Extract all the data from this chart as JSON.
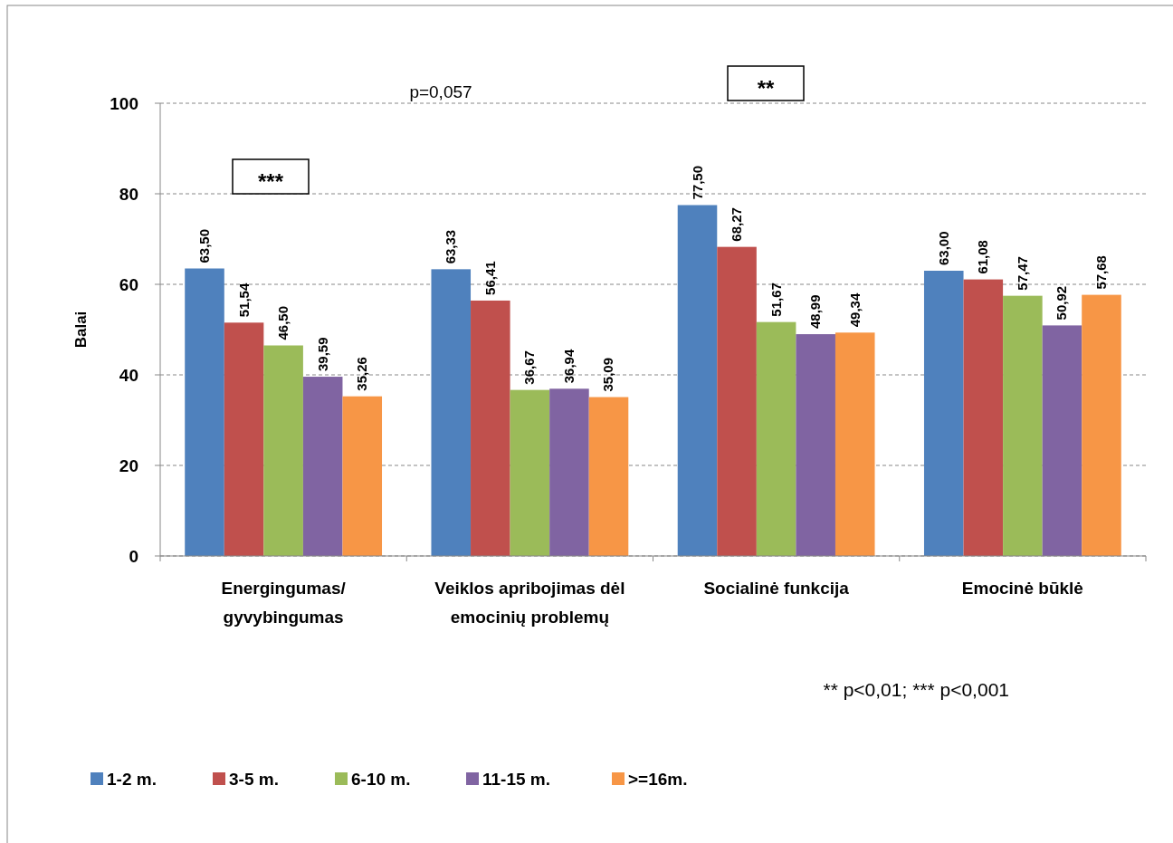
{
  "chart_data": {
    "type": "bar",
    "ylabel": "Balai",
    "categories": [
      "Energingumas/\ngyvybingumas",
      "Veiklos apribojimas dėl\nemocinių problemų",
      "Socialinė funkcija",
      "Emocinė būklė"
    ],
    "series": [
      {
        "name": "1-2 m.",
        "color": "#4f81bd",
        "values": [
          63.5,
          63.33,
          77.5,
          63.0
        ],
        "value_labels": [
          "63,50",
          "63,33",
          "77,50",
          "63,00"
        ]
      },
      {
        "name": "3-5 m.",
        "color": "#c0504d",
        "values": [
          51.54,
          56.41,
          68.27,
          61.08
        ],
        "value_labels": [
          "51,54",
          "56,41",
          "68,27",
          "61,08"
        ]
      },
      {
        "name": "6-10 m.",
        "color": "#9bbb59",
        "values": [
          46.5,
          36.67,
          51.67,
          57.47
        ],
        "value_labels": [
          "46,50",
          "36,67",
          "51,67",
          "57,47"
        ]
      },
      {
        "name": "11-15 m.",
        "color": "#8064a2",
        "values": [
          39.59,
          36.94,
          48.99,
          50.92
        ],
        "value_labels": [
          "39,59",
          "36,94",
          "48,99",
          "50,92"
        ]
      },
      {
        "name": ">=16m.",
        "color": "#f79646",
        "values": [
          35.26,
          35.09,
          49.34,
          57.68
        ],
        "value_labels": [
          "35,26",
          "35,09",
          "49,34",
          "57,68"
        ]
      }
    ],
    "ylim": [
      0,
      100
    ],
    "yticks": [
      0,
      20,
      40,
      60,
      80,
      100
    ],
    "grid": "y",
    "legend": "bottom",
    "annotations": [
      "***",
      "p=0,057",
      "**",
      "** p<0,01; *** p<0,001"
    ]
  }
}
